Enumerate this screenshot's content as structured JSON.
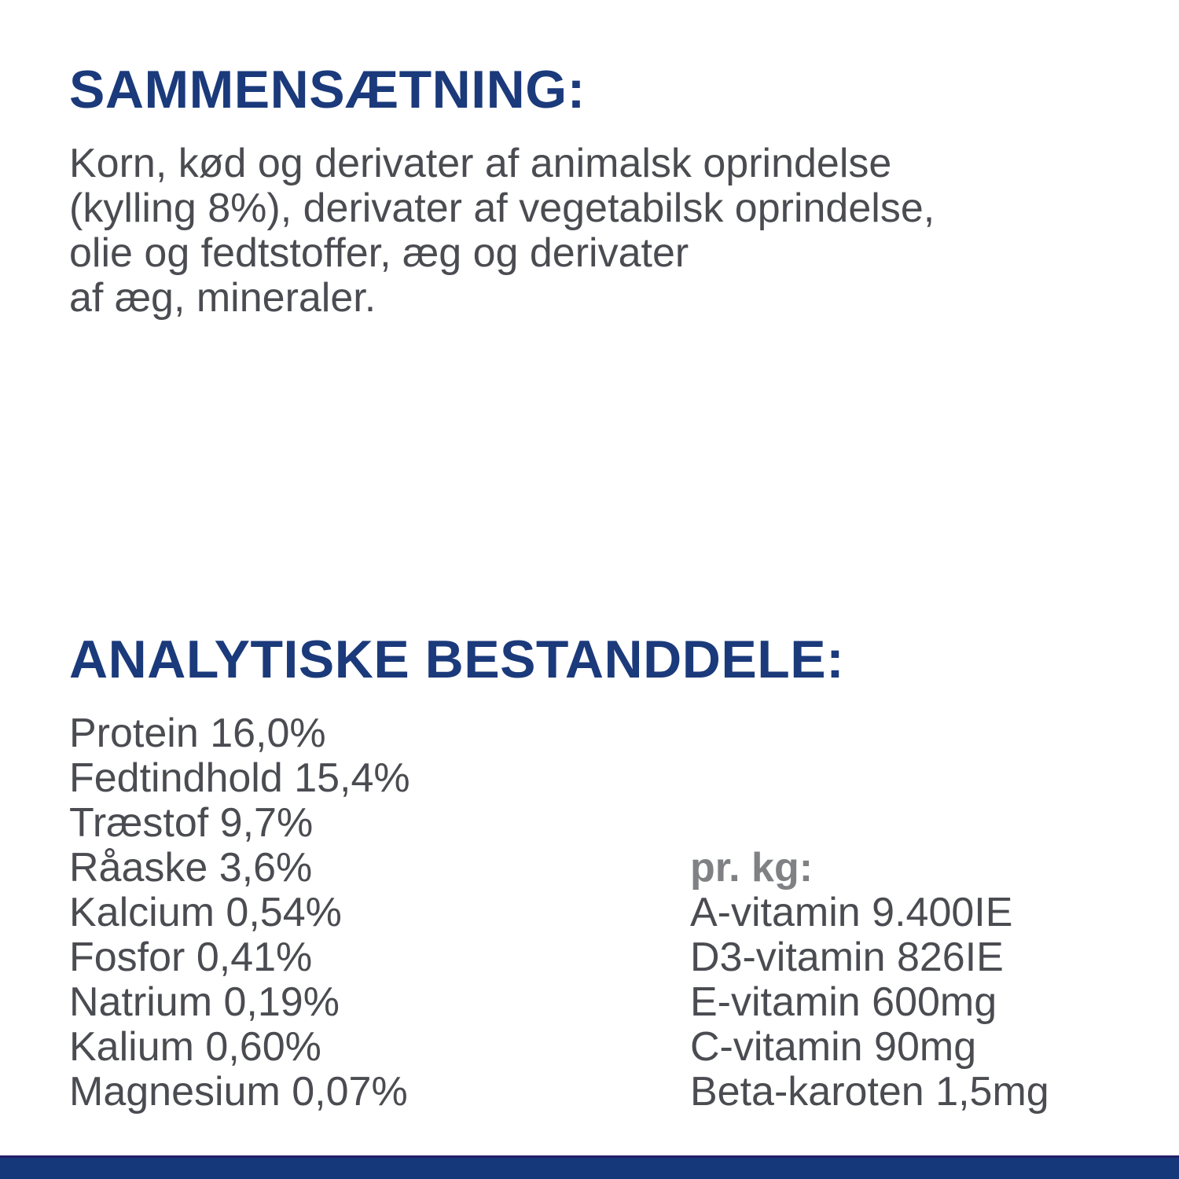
{
  "colors": {
    "heading_navy": "#1b3a7b",
    "body_gray": "#4a4c51",
    "per_kg_label_gray": "#7f8184",
    "footer_bar_blue": "#14387a",
    "footer_bar_edge": "#232069",
    "background": "#ffffff"
  },
  "composition": {
    "heading": "SAMMENSÆTNING:",
    "lines": [
      "Korn, kød og derivater af animalsk oprindelse",
      "(kylling 8%), derivater af vegetabilsk oprindelse,",
      "olie og fedtstoffer, æg og derivater",
      "af æg, mineraler."
    ]
  },
  "analytical": {
    "heading": "ANALYTISKE BESTANDDELE:",
    "nutrients": [
      {
        "label": "Protein",
        "value": "16,0%"
      },
      {
        "label": "Fedtindhold",
        "value": "15,4%"
      },
      {
        "label": "Træstof",
        "value": "9,7%"
      },
      {
        "label": "Råaske",
        "value": "3,6%"
      },
      {
        "label": "Kalcium",
        "value": "0,54%"
      },
      {
        "label": "Fosfor",
        "value": "0,41%"
      },
      {
        "label": "Natrium",
        "value": "0,19%"
      },
      {
        "label": "Kalium",
        "value": "0,60%"
      },
      {
        "label": "Magnesium",
        "value": "0,07%"
      }
    ],
    "per_kg": {
      "label": "pr. kg:",
      "vitamins": [
        {
          "label": "A-vitamin",
          "value": "9.400IE"
        },
        {
          "label": "D3-vitamin",
          "value": "826IE"
        },
        {
          "label": "E-vitamin",
          "value": "600mg"
        },
        {
          "label": "C-vitamin",
          "value": "90mg"
        },
        {
          "label": "Beta-karoten",
          "value": "1,5mg"
        }
      ]
    }
  }
}
